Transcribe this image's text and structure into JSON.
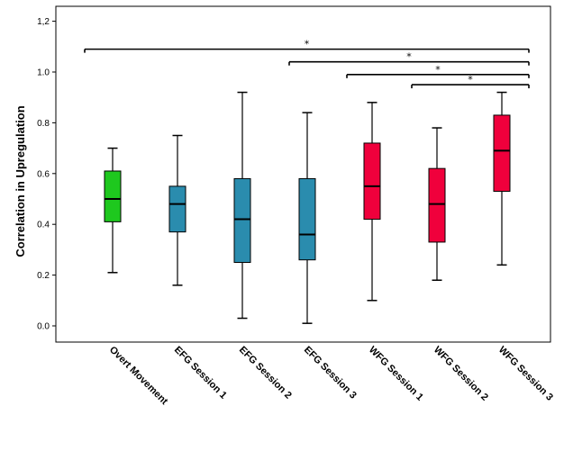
{
  "chart_data": {
    "type": "boxplot",
    "title": "",
    "xlabel": "",
    "ylabel": "Correlation in Upregulation",
    "ylim": [
      -0.06,
      1.26
    ],
    "yticks": [
      "0.0",
      "0.2",
      "0.4",
      "0.6",
      "0.8",
      "1.0",
      "1,2"
    ],
    "ytick_values": [
      0.0,
      0.2,
      0.4,
      0.6,
      0.8,
      1.0,
      1.2
    ],
    "grid": false,
    "categories": [
      "Overt Movement",
      "EFG Session 1",
      "EFG Session 2",
      "EFG Session 3",
      "WFG Session 1",
      "WFG Session 2",
      "WFG Session 3"
    ],
    "boxes": [
      {
        "category": "Overt Movement",
        "min": 0.21,
        "q1": 0.41,
        "median": 0.5,
        "q3": 0.61,
        "max": 0.7,
        "color": "#1ec81e"
      },
      {
        "category": "EFG Session 1",
        "min": 0.16,
        "q1": 0.37,
        "median": 0.48,
        "q3": 0.55,
        "max": 0.75,
        "color": "#2a8cae"
      },
      {
        "category": "EFG Session 2",
        "min": 0.03,
        "q1": 0.25,
        "median": 0.42,
        "q3": 0.58,
        "max": 0.92,
        "color": "#2a8cae"
      },
      {
        "category": "EFG Session 3",
        "min": 0.01,
        "q1": 0.26,
        "median": 0.36,
        "q3": 0.58,
        "max": 0.84,
        "color": "#2a8cae"
      },
      {
        "category": "WFG Session 1",
        "min": 0.1,
        "q1": 0.42,
        "median": 0.55,
        "q3": 0.72,
        "max": 0.88,
        "color": "#f0003c"
      },
      {
        "category": "WFG Session 2",
        "min": 0.18,
        "q1": 0.33,
        "median": 0.48,
        "q3": 0.62,
        "max": 0.78,
        "color": "#f0003c"
      },
      {
        "category": "WFG Session 3",
        "min": 0.24,
        "q1": 0.53,
        "median": 0.69,
        "q3": 0.83,
        "max": 0.92,
        "color": "#f0003c"
      }
    ],
    "significance": [
      {
        "from": "Overt Movement",
        "to": "WFG Session 3",
        "y": 1.09,
        "label": "*"
      },
      {
        "from": "EFG Session 3",
        "to": "WFG Session 3",
        "y": 1.04,
        "label": "*"
      },
      {
        "from": "WFG Session 1",
        "to": "WFG Session 3",
        "y": 0.99,
        "label": "*"
      },
      {
        "from": "WFG Session 2",
        "to": "WFG Session 3",
        "y": 0.95,
        "label": "*"
      }
    ]
  }
}
